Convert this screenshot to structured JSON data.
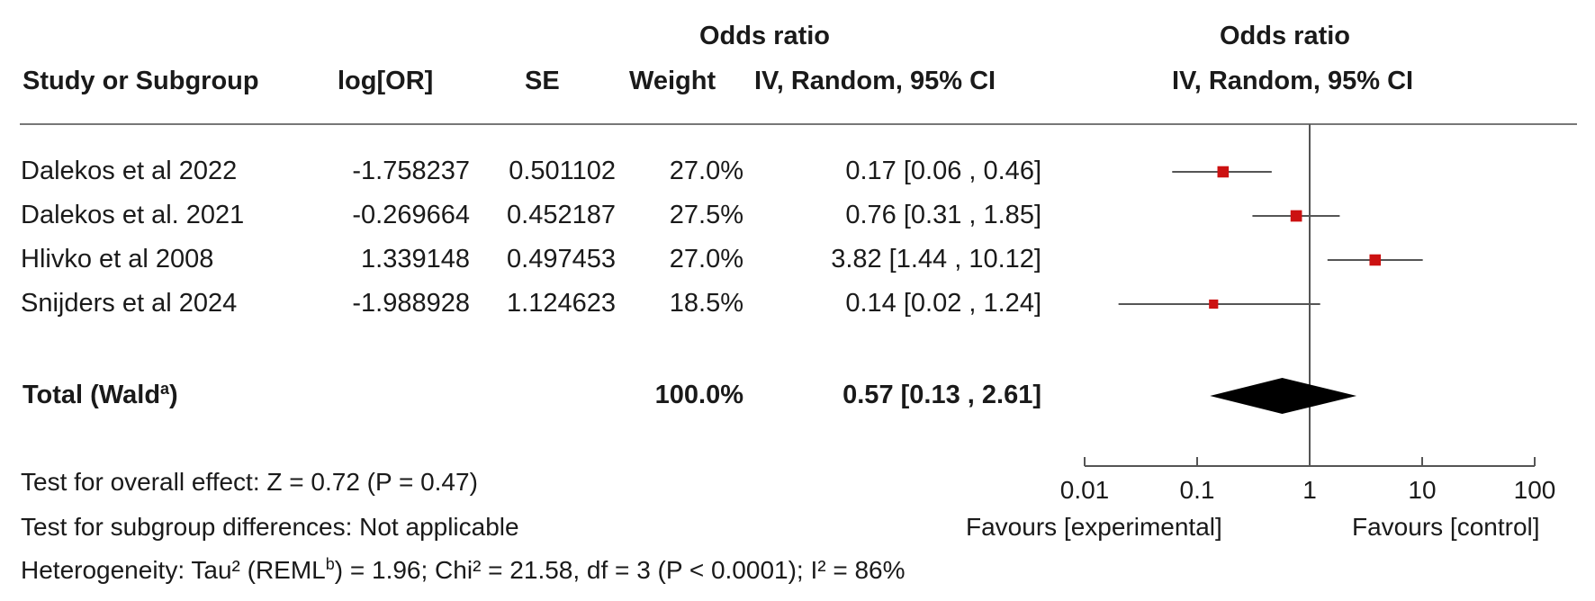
{
  "headers": {
    "study": "Study or Subgroup",
    "logor": "log[OR]",
    "se": "SE",
    "weight": "Weight",
    "or_title": "Odds ratio",
    "or_method": "IV, Random, 95% CI",
    "plot_title": "Odds ratio",
    "plot_method": "IV, Random, 95% CI"
  },
  "studies": [
    {
      "name": "Dalekos et al 2022",
      "logor": "-1.758237",
      "se": "0.501102",
      "weight": "27.0%",
      "ci": "0.17 [0.06 , 0.46]"
    },
    {
      "name": "Dalekos et al. 2021",
      "logor": "-0.269664",
      "se": "0.452187",
      "weight": "27.5%",
      "ci": "0.76 [0.31 , 1.85]"
    },
    {
      "name": "Hlivko et al 2008",
      "logor": "1.339148",
      "se": "0.497453",
      "weight": "27.0%",
      "ci": "3.82 [1.44 , 10.12]"
    },
    {
      "name": "Snijders et al 2024",
      "logor": "-1.988928",
      "se": "1.124623",
      "weight": "18.5%",
      "ci": "0.14 [0.02 , 1.24]"
    }
  ],
  "total": {
    "label": "Total (Wald",
    "sup": "a",
    "close": ")",
    "weight": "100.0%",
    "ci": "0.57 [0.13 , 2.61]"
  },
  "footer": {
    "overall": "Test for overall effect: Z = 0.72 (P = 0.47)",
    "subgroup": "Test for subgroup differences: Not applicable",
    "het_pre": "Heterogeneity: Tau² (REML",
    "het_sup": "b",
    "het_post": ") = 1.96; Chi² = 21.58, df = 3 (P < 0.0001); I² = 86%"
  },
  "axis": {
    "favours_left": "Favours [experimental]",
    "favours_right": "Favours [control]"
  },
  "colors": {
    "marker": "#cc1111",
    "line": "#555555",
    "diamond": "#000000"
  },
  "chart_data": {
    "type": "forest",
    "scale": "log",
    "xlim": [
      0.01,
      100
    ],
    "ticks": [
      0.01,
      0.1,
      1,
      10,
      100
    ],
    "tick_labels": [
      "0.01",
      "0.1",
      "1",
      "10",
      "100"
    ],
    "reference_line": 1,
    "studies": [
      {
        "name": "Dalekos et al 2022",
        "or": 0.17,
        "lower": 0.06,
        "upper": 0.46,
        "weight": 27.0
      },
      {
        "name": "Dalekos et al. 2021",
        "or": 0.76,
        "lower": 0.31,
        "upper": 1.85,
        "weight": 27.5
      },
      {
        "name": "Hlivko et al 2008",
        "or": 3.82,
        "lower": 1.44,
        "upper": 10.12,
        "weight": 27.0
      },
      {
        "name": "Snijders et al 2024",
        "or": 0.14,
        "lower": 0.02,
        "upper": 1.24,
        "weight": 18.5
      }
    ],
    "total": {
      "or": 0.57,
      "lower": 0.13,
      "upper": 2.61
    }
  }
}
